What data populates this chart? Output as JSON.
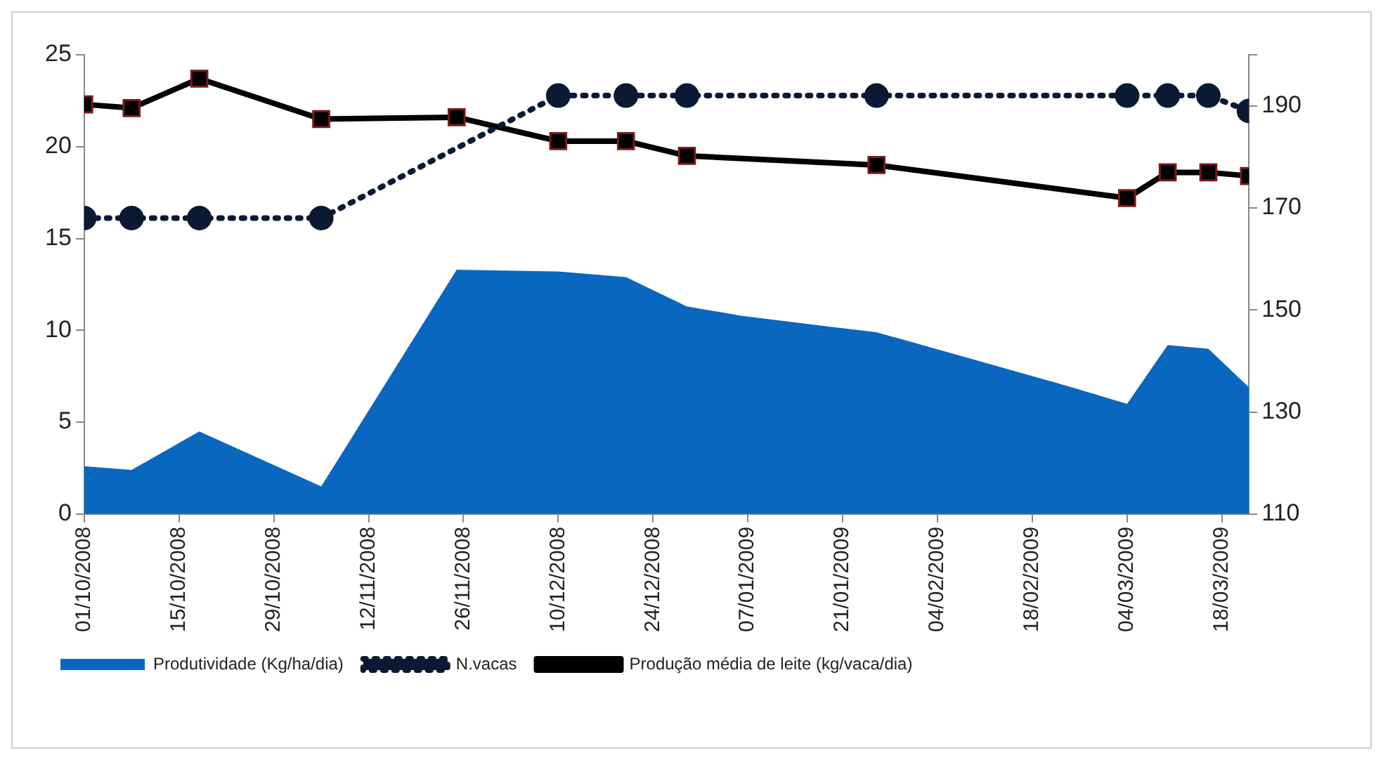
{
  "chart_data": {
    "type": "area",
    "xlim": [
      "2008-10-01",
      "2009-03-22"
    ],
    "xticks": [
      {
        "value": "2008-10-01",
        "label": "01/10/2008"
      },
      {
        "value": "2008-10-15",
        "label": "15/10/2008"
      },
      {
        "value": "2008-10-29",
        "label": "29/10/2008"
      },
      {
        "value": "2008-11-12",
        "label": "12/11/2008"
      },
      {
        "value": "2008-11-26",
        "label": "26/11/2008"
      },
      {
        "value": "2008-12-10",
        "label": "10/12/2008"
      },
      {
        "value": "2008-12-24",
        "label": "24/12/2008"
      },
      {
        "value": "2009-01-07",
        "label": "07/01/2009"
      },
      {
        "value": "2009-01-21",
        "label": "21/01/2009"
      },
      {
        "value": "2009-02-04",
        "label": "04/02/2009"
      },
      {
        "value": "2009-02-18",
        "label": "18/02/2009"
      },
      {
        "value": "2009-03-04",
        "label": "04/03/2009"
      },
      {
        "value": "2009-03-18",
        "label": "18/03/2009"
      }
    ],
    "ylim": [
      0,
      25
    ],
    "yticks": [
      0,
      5,
      10,
      15,
      20,
      25
    ],
    "y2lim": [
      110,
      200
    ],
    "y2ticks": [
      110,
      130,
      150,
      170,
      190,
      {
        "value": 200,
        "label": null
      }
    ],
    "grid": false,
    "legend": "bottom",
    "series": [
      {
        "name": "Produtividade (Kg/ha/dia)",
        "color": "#0a67c0",
        "marker": "none",
        "x": [
          "2008-10-01",
          "2008-10-08",
          "2008-10-18",
          "2008-11-05",
          "2008-11-25",
          "2008-12-10",
          "2008-12-20",
          "2008-12-29",
          "2009-01-06",
          "2009-01-19",
          "2009-01-26",
          "2009-02-22",
          "2009-03-04",
          "2009-03-10",
          "2009-03-16",
          "2009-03-22"
        ],
        "values": [
          2.6,
          2.4,
          4.5,
          1.5,
          13.3,
          13.2,
          12.9,
          11.3,
          10.8,
          10.2,
          9.9,
          7.1,
          6.0,
          9.2,
          9.0,
          6.9
        ]
      },
      {
        "name": "N.vacas",
        "type": "line",
        "axis": "y2",
        "color": "#0b1a33",
        "marker": "circle",
        "line_style": "dotted",
        "x": [
          "2008-10-01",
          "2008-10-08",
          "2008-10-18",
          "2008-11-05",
          "2008-12-10",
          "2008-12-20",
          "2008-12-29",
          "2009-01-26",
          "2009-03-04",
          "2009-03-10",
          "2009-03-16",
          "2009-03-22"
        ],
        "values": [
          168,
          168,
          168,
          168,
          192,
          192,
          192,
          192,
          192,
          192,
          192,
          189
        ]
      },
      {
        "name": "Produção média de leite (kg/vaca/dia)",
        "type": "line",
        "color": "#000000",
        "marker": "square",
        "line_style": "solid",
        "x": [
          "2008-10-01",
          "2008-10-08",
          "2008-10-18",
          "2008-11-05",
          "2008-11-25",
          "2008-12-10",
          "2008-12-20",
          "2008-12-29",
          "2009-01-26",
          "2009-03-04",
          "2009-03-10",
          "2009-03-16",
          "2009-03-22"
        ],
        "values": [
          22.3,
          22.1,
          23.7,
          21.5,
          21.6,
          20.3,
          20.3,
          19.5,
          19.0,
          17.2,
          18.6,
          18.6,
          18.4
        ]
      }
    ]
  }
}
